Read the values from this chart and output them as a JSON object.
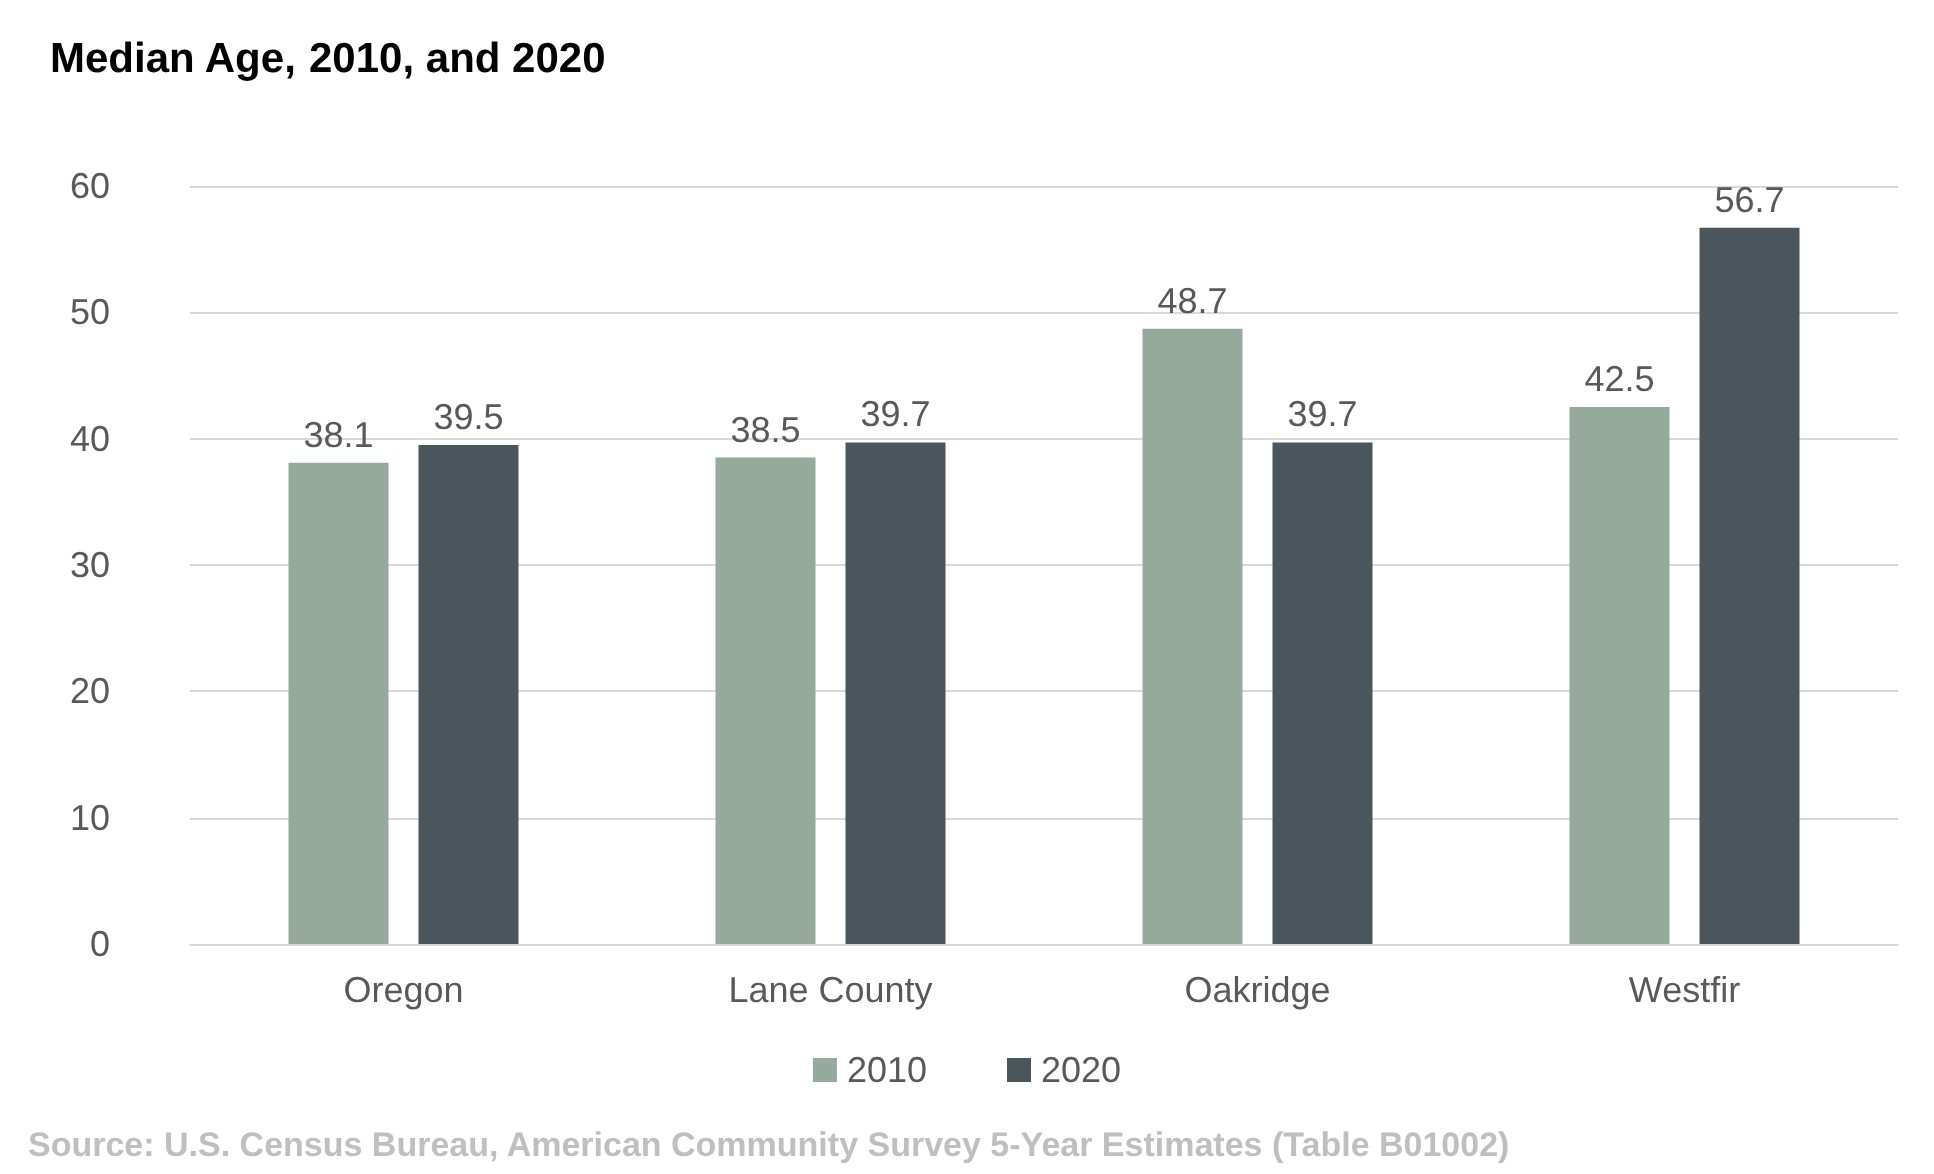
{
  "chart_data": {
    "type": "bar",
    "title": "Median Age, 2010, and 2020",
    "categories": [
      "Oregon",
      "Lane County",
      "Oakridge",
      "Westfir"
    ],
    "series": [
      {
        "name": "2010",
        "color": "#95aa9c",
        "values": [
          38.1,
          38.5,
          48.7,
          42.5
        ]
      },
      {
        "name": "2020",
        "color": "#4b565c",
        "values": [
          39.5,
          39.7,
          39.7,
          56.7
        ]
      }
    ],
    "ylim": [
      0,
      60
    ],
    "yticks": [
      0,
      10,
      20,
      30,
      40,
      50,
      60
    ],
    "grid": "y",
    "legend": "bottom",
    "data_labels": true,
    "annotations": [
      "Source: U.S. Census Bureau, American Community Survey 5-Year Estimates (Table B01002)"
    ]
  }
}
